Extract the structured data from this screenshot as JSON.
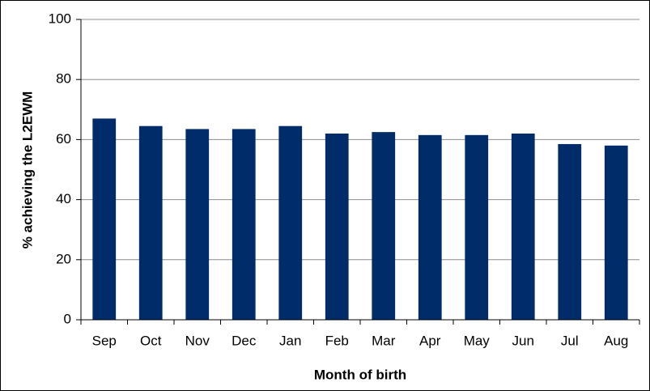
{
  "chart_data": {
    "type": "bar",
    "xlabel": "Month of birth",
    "ylabel": "% achieving the L2EWM",
    "categories": [
      "Sep",
      "Oct",
      "Nov",
      "Dec",
      "Jan",
      "Feb",
      "Mar",
      "Apr",
      "May",
      "Jun",
      "Jul",
      "Aug"
    ],
    "values": [
      67,
      64.5,
      63.5,
      63.5,
      64.5,
      62,
      62.5,
      61.5,
      61.5,
      62,
      58.5,
      58
    ],
    "color": "#002d6a",
    "ylim": [
      0,
      100
    ],
    "yticks": [
      0,
      20,
      40,
      60,
      80,
      100
    ],
    "grid": true
  }
}
